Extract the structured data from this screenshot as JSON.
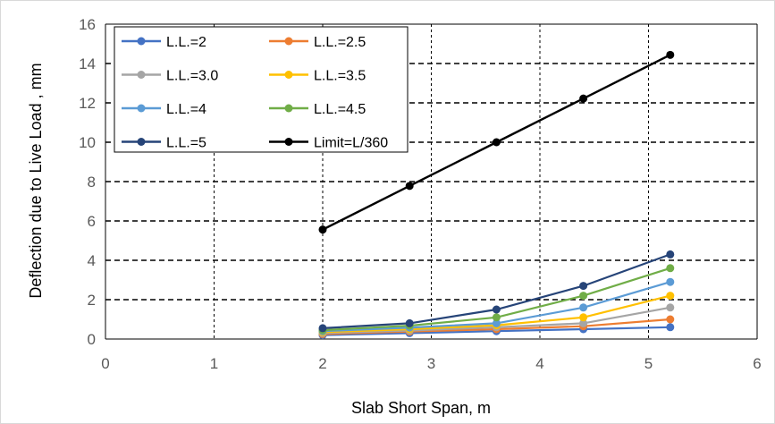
{
  "chart_data": {
    "type": "line",
    "xlabel": "Slab Short Span, m",
    "ylabel": "Deflection due to Live Load , mm",
    "xlim": [
      0,
      6
    ],
    "ylim": [
      0,
      16
    ],
    "xticks": [
      0,
      1,
      2,
      3,
      4,
      5,
      6
    ],
    "yticks": [
      0,
      2,
      4,
      6,
      8,
      10,
      12,
      14,
      16
    ],
    "grid": {
      "x": "dashed vertical",
      "y": "dashed horizontal"
    },
    "legend_position": "top-left",
    "x": [
      2,
      2.8,
      3.6,
      4.4,
      5.2
    ],
    "series": [
      {
        "name": "L.L.=2",
        "color": "#4472C4",
        "values": [
          0.2,
          0.3,
          0.4,
          0.5,
          0.6
        ]
      },
      {
        "name": "L.L.=2.5",
        "color": "#ED7D31",
        "values": [
          0.25,
          0.38,
          0.5,
          0.65,
          1.0
        ]
      },
      {
        "name": "L.L.=3.0",
        "color": "#A5A5A5",
        "values": [
          0.3,
          0.43,
          0.6,
          0.8,
          1.6
        ]
      },
      {
        "name": "L.L.=3.5",
        "color": "#FFC000",
        "values": [
          0.35,
          0.5,
          0.7,
          1.1,
          2.2
        ]
      },
      {
        "name": "L.L.=4",
        "color": "#5B9BD5",
        "values": [
          0.4,
          0.58,
          0.8,
          1.6,
          2.9
        ]
      },
      {
        "name": "L.L.=4.5",
        "color": "#70AD47",
        "values": [
          0.45,
          0.68,
          1.1,
          2.2,
          3.6
        ]
      },
      {
        "name": "L.L.=5",
        "color": "#264478",
        "values": [
          0.55,
          0.8,
          1.5,
          2.7,
          4.3
        ]
      },
      {
        "name": "Limit=L/360",
        "color": "#000000",
        "values": [
          5.56,
          7.78,
          10.0,
          12.22,
          14.44
        ]
      }
    ]
  }
}
